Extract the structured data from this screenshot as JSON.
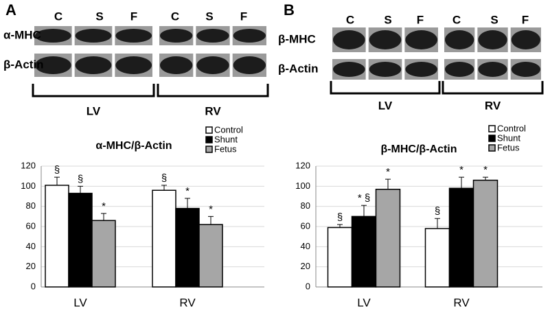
{
  "chart_data": [
    {
      "type": "bar",
      "panel": "A",
      "title": "α-MHC/β-Actin",
      "blot": {
        "lanes": [
          "C",
          "S",
          "F"
        ],
        "rows": [
          "α-MHC",
          "β-Actin"
        ],
        "groups": [
          "LV",
          "RV"
        ]
      },
      "categories": [
        "LV",
        "RV"
      ],
      "series": [
        {
          "name": "Control",
          "color": "#ffffff",
          "values": [
            101,
            96
          ],
          "errors": [
            8,
            5
          ],
          "annotations": [
            "§",
            "§"
          ]
        },
        {
          "name": "Shunt",
          "color": "#000000",
          "values": [
            93,
            78
          ],
          "errors": [
            7,
            10
          ],
          "annotations": [
            "§",
            "*"
          ]
        },
        {
          "name": "Fetus",
          "color": "#a6a6a6",
          "values": [
            66,
            62
          ],
          "errors": [
            7,
            8
          ],
          "annotations": [
            "*",
            "*"
          ]
        }
      ],
      "ylim": [
        0,
        120
      ],
      "yticks": [
        0,
        20,
        40,
        60,
        80,
        100,
        120
      ],
      "grid": true,
      "legend": "upper right"
    },
    {
      "type": "bar",
      "panel": "B",
      "title": "β-MHC/β-Actin",
      "blot": {
        "lanes": [
          "C",
          "S",
          "F"
        ],
        "rows": [
          "β-MHC",
          "β-Actin"
        ],
        "groups": [
          "LV",
          "RV"
        ]
      },
      "categories": [
        "LV",
        "RV"
      ],
      "series": [
        {
          "name": "Control",
          "color": "#ffffff",
          "values": [
            59,
            58
          ],
          "errors": [
            3,
            10
          ],
          "annotations": [
            "§",
            "§"
          ]
        },
        {
          "name": "Shunt",
          "color": "#000000",
          "values": [
            70,
            98
          ],
          "errors": [
            11,
            11
          ],
          "annotations": [
            "* §",
            "*"
          ]
        },
        {
          "name": "Fetus",
          "color": "#a6a6a6",
          "values": [
            97,
            106
          ],
          "errors": [
            10,
            3
          ],
          "annotations": [
            "*",
            "*"
          ]
        }
      ],
      "ylim": [
        0,
        120
      ],
      "yticks": [
        0,
        20,
        40,
        60,
        80,
        100,
        120
      ],
      "grid": true,
      "legend": "upper right"
    }
  ]
}
